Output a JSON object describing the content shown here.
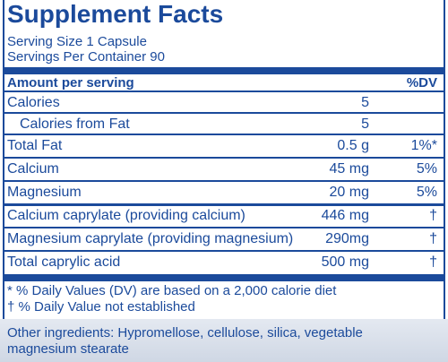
{
  "title": "Supplement Facts",
  "serving_size": "Serving Size 1 Capsule",
  "servings_per_container": "Servings Per Container 90",
  "header": {
    "amount": "Amount per serving",
    "dv": "%DV"
  },
  "rows": [
    {
      "name": "Calories",
      "amount": "5"
    },
    {
      "name": "Calories from Fat",
      "amount": "5"
    },
    {
      "name": "Total Fat",
      "amount": "0.5 g",
      "dv": "1%*"
    },
    {
      "name": "Calcium",
      "amount": "45 mg",
      "dv": "5%"
    },
    {
      "name": "Magnesium",
      "amount": "20 mg",
      "dv": "5%"
    },
    {
      "name": "Calcium caprylate (providing calcium)",
      "amount": "446 mg",
      "dv": "†"
    },
    {
      "name": "Magnesium caprylate (providing magnesium)",
      "amount": "290mg",
      "dv": "†"
    },
    {
      "name": "Total caprylic acid",
      "amount": "500 mg",
      "dv": "†"
    }
  ],
  "footnotes": [
    "* % Daily Values (DV) are based on a 2,000 calorie diet",
    "† % Daily Value not established"
  ],
  "other_ingredients": "Other ingredients: Hypromellose, cellulose, silica, vegetable magnesium stearate"
}
